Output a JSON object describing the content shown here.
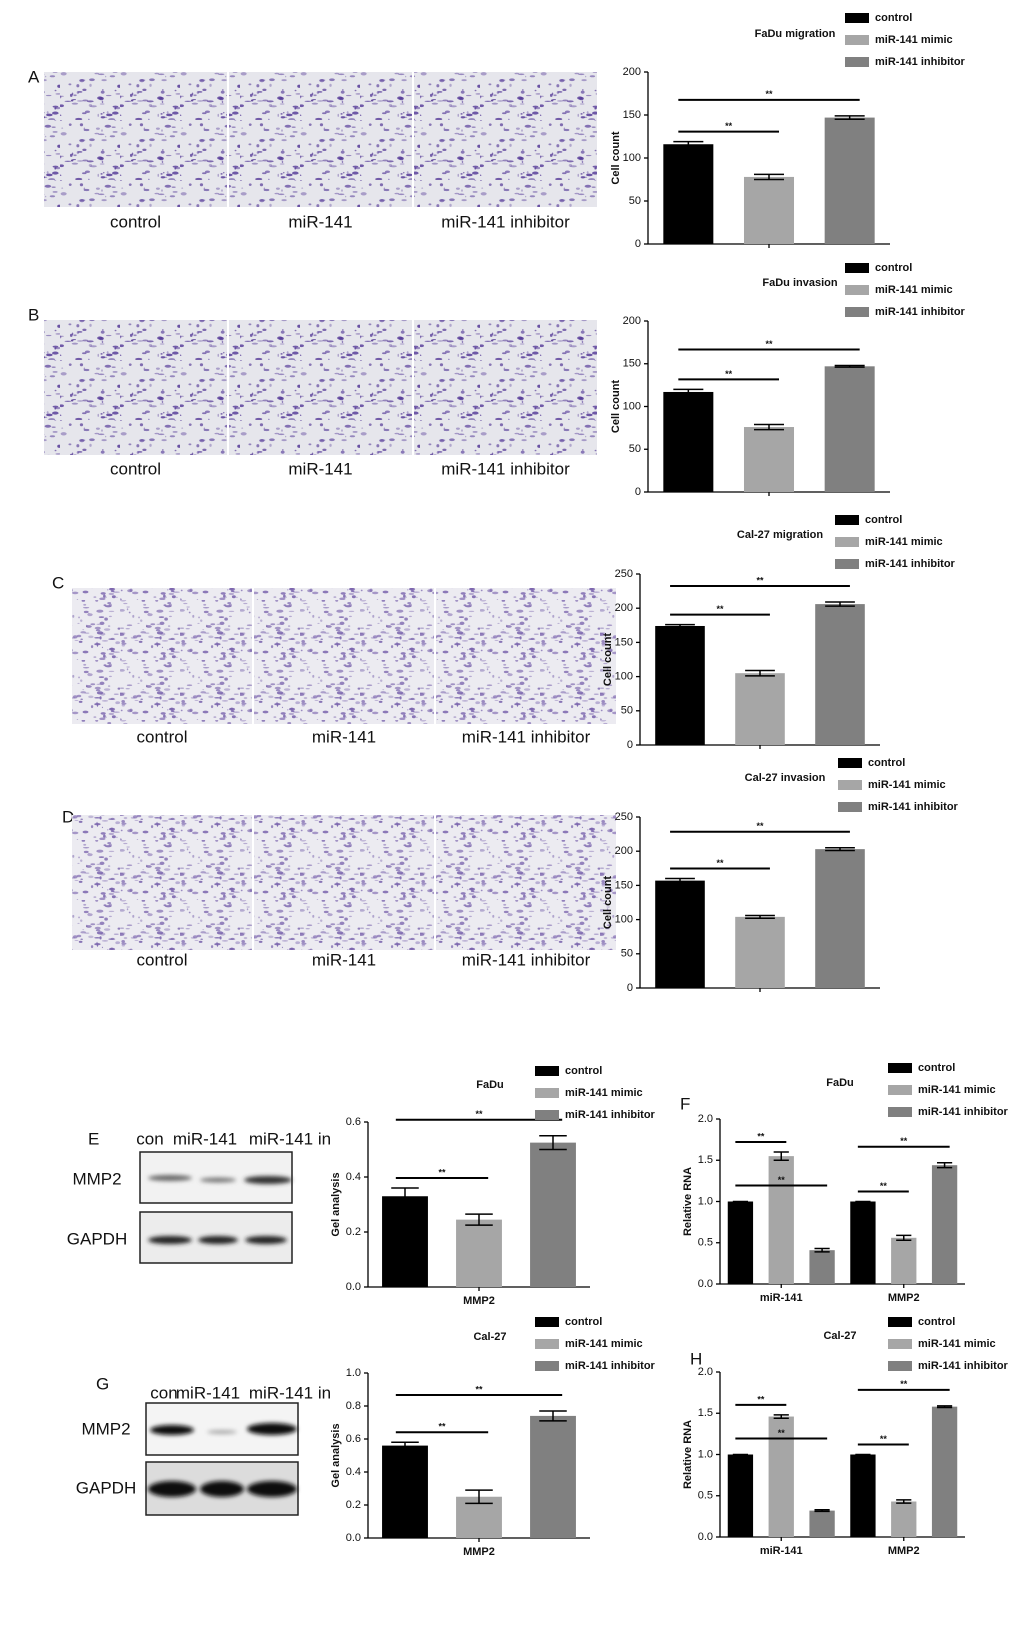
{
  "panel_labels": [
    "A",
    "B",
    "C",
    "D",
    "E",
    "F",
    "G",
    "H"
  ],
  "micrographs": [
    [
      "control",
      "miR-141",
      "miR-141 inhibitor"
    ],
    [
      "control",
      "miR-141",
      "miR-141 inhibitor"
    ],
    [
      "control",
      "miR-141",
      "miR-141 inhibitor"
    ],
    [
      "control",
      "miR-141",
      "miR-141 inhibitor"
    ]
  ],
  "blots": [
    {
      "lanes": [
        "con",
        "miR-141",
        "miR-141 in"
      ],
      "proteins": [
        "MMP2",
        "GAPDH"
      ]
    },
    {
      "lanes": [
        "con",
        "miR-141",
        "miR-141 in"
      ],
      "proteins": [
        "MMP2",
        "GAPDH"
      ]
    }
  ],
  "chart_data": [
    {
      "type": "bar",
      "title": "FaDu migration",
      "ylabel": "Cell count",
      "categories": [
        null
      ],
      "series": [
        {
          "name": "control",
          "color": "#000000",
          "values": [
            116
          ],
          "errors": [
            3
          ]
        },
        {
          "name": "miR-141 mimic",
          "color": "#a6a6a6",
          "values": [
            78
          ],
          "errors": [
            3
          ]
        },
        {
          "name": "miR-141 inhibitor",
          "color": "#808080",
          "values": [
            147
          ],
          "errors": [
            2
          ]
        }
      ],
      "ylim": [
        0,
        200
      ],
      "yticks": [
        0,
        50,
        100,
        150,
        200
      ],
      "annotations": [
        "**",
        "**"
      ]
    },
    {
      "type": "bar",
      "title": "FaDu invasion",
      "ylabel": "Cell count",
      "categories": [
        null
      ],
      "series": [
        {
          "name": "control",
          "color": "#000000",
          "values": [
            117
          ],
          "errors": [
            3
          ]
        },
        {
          "name": "miR-141 mimic",
          "color": "#a6a6a6",
          "values": [
            76
          ],
          "errors": [
            3
          ]
        },
        {
          "name": "miR-141 inhibitor",
          "color": "#808080",
          "values": [
            147
          ],
          "errors": [
            1
          ]
        }
      ],
      "ylim": [
        0,
        200
      ],
      "yticks": [
        0,
        50,
        100,
        150,
        200
      ],
      "annotations": [
        "**",
        "**"
      ]
    },
    {
      "type": "bar",
      "title": "Cal-27 migration",
      "ylabel": "Cell count",
      "categories": [
        null
      ],
      "series": [
        {
          "name": "control",
          "color": "#000000",
          "values": [
            174
          ],
          "errors": [
            2
          ]
        },
        {
          "name": "miR-141 mimic",
          "color": "#a6a6a6",
          "values": [
            105
          ],
          "errors": [
            4
          ]
        },
        {
          "name": "miR-141 inhibitor",
          "color": "#808080",
          "values": [
            206
          ],
          "errors": [
            3
          ]
        }
      ],
      "ylim": [
        0,
        250
      ],
      "yticks": [
        0,
        50,
        100,
        150,
        200,
        250
      ],
      "annotations": [
        "**",
        "**"
      ]
    },
    {
      "type": "bar",
      "title": "Cal-27 invasion",
      "ylabel": "Cell count",
      "categories": [
        null
      ],
      "series": [
        {
          "name": "control",
          "color": "#000000",
          "values": [
            157
          ],
          "errors": [
            3
          ]
        },
        {
          "name": "miR-141 mimic",
          "color": "#a6a6a6",
          "values": [
            104
          ],
          "errors": [
            2
          ]
        },
        {
          "name": "miR-141 inhibitor",
          "color": "#808080",
          "values": [
            203
          ],
          "errors": [
            2
          ]
        }
      ],
      "ylim": [
        0,
        250
      ],
      "yticks": [
        0,
        50,
        100,
        150,
        200,
        250
      ],
      "annotations": [
        "**",
        "**"
      ]
    },
    {
      "type": "bar",
      "title": "FaDu",
      "ylabel": "Gel analysis",
      "categories": [
        "MMP2"
      ],
      "series": [
        {
          "name": "control",
          "color": "#000000",
          "values": [
            0.33
          ],
          "errors": [
            0.03
          ]
        },
        {
          "name": "miR-141 mimic",
          "color": "#a6a6a6",
          "values": [
            0.245
          ],
          "errors": [
            0.02
          ]
        },
        {
          "name": "miR-141 inhibitor",
          "color": "#808080",
          "values": [
            0.525
          ],
          "errors": [
            0.025
          ]
        }
      ],
      "ylim": [
        0,
        0.6
      ],
      "yticks": [
        {
          "value": 0,
          "label": "0.0"
        },
        0.2,
        0.4,
        0.6
      ],
      "annotations": [
        "**",
        "**"
      ]
    },
    {
      "type": "bar",
      "title": "FaDu",
      "ylabel": "Relative RNA",
      "categories": [
        "miR-141",
        "MMP2"
      ],
      "series": [
        {
          "name": "control",
          "color": "#000000",
          "values": [
            1.0,
            1.0
          ],
          "errors": [
            0,
            0
          ]
        },
        {
          "name": "miR-141 mimic",
          "color": "#a6a6a6",
          "values": [
            1.55,
            0.56
          ],
          "errors": [
            0.05,
            0.03
          ]
        },
        {
          "name": "miR-141 inhibitor",
          "color": "#808080",
          "values": [
            0.41,
            1.44
          ],
          "errors": [
            0.02,
            0.03
          ]
        }
      ],
      "ylim": [
        0,
        2
      ],
      "yticks": [
        {
          "value": 0,
          "label": "0.0"
        },
        0.5,
        {
          "value": 1,
          "label": "1.0"
        },
        1.5,
        {
          "value": 2,
          "label": "2.0"
        }
      ],
      "annotations": [
        "**",
        "**",
        "**",
        "**"
      ]
    },
    {
      "type": "bar",
      "title": "Cal-27",
      "ylabel": "Gel analysis",
      "categories": [
        "MMP2"
      ],
      "series": [
        {
          "name": "control",
          "color": "#000000",
          "values": [
            0.56
          ],
          "errors": [
            0.02
          ]
        },
        {
          "name": "miR-141 mimic",
          "color": "#a6a6a6",
          "values": [
            0.25
          ],
          "errors": [
            0.04
          ]
        },
        {
          "name": "miR-141 inhibitor",
          "color": "#808080",
          "values": [
            0.74
          ],
          "errors": [
            0.03
          ]
        }
      ],
      "ylim": [
        0,
        1
      ],
      "yticks": [
        {
          "value": 0,
          "label": "0.0"
        },
        0.2,
        0.4,
        0.6,
        0.8,
        {
          "value": 1,
          "label": "1.0"
        }
      ],
      "annotations": [
        "**",
        "**"
      ]
    },
    {
      "type": "bar",
      "title": "Cal-27",
      "ylabel": "Relative RNA",
      "categories": [
        "miR-141",
        "MMP2"
      ],
      "series": [
        {
          "name": "control",
          "color": "#000000",
          "values": [
            1.0,
            1.0
          ],
          "errors": [
            0,
            0
          ]
        },
        {
          "name": "miR-141 mimic",
          "color": "#a6a6a6",
          "values": [
            1.46,
            0.43
          ],
          "errors": [
            0.02,
            0.02
          ]
        },
        {
          "name": "miR-141 inhibitor",
          "color": "#808080",
          "values": [
            0.32,
            1.58
          ],
          "errors": [
            0.01,
            0.01
          ]
        }
      ],
      "ylim": [
        0,
        2
      ],
      "yticks": [
        {
          "value": 0,
          "label": "0.0"
        },
        0.5,
        {
          "value": 1,
          "label": "1.0"
        },
        1.5,
        {
          "value": 2,
          "label": "2.0"
        }
      ],
      "annotations": [
        "**",
        "**",
        "**",
        "**"
      ]
    }
  ]
}
